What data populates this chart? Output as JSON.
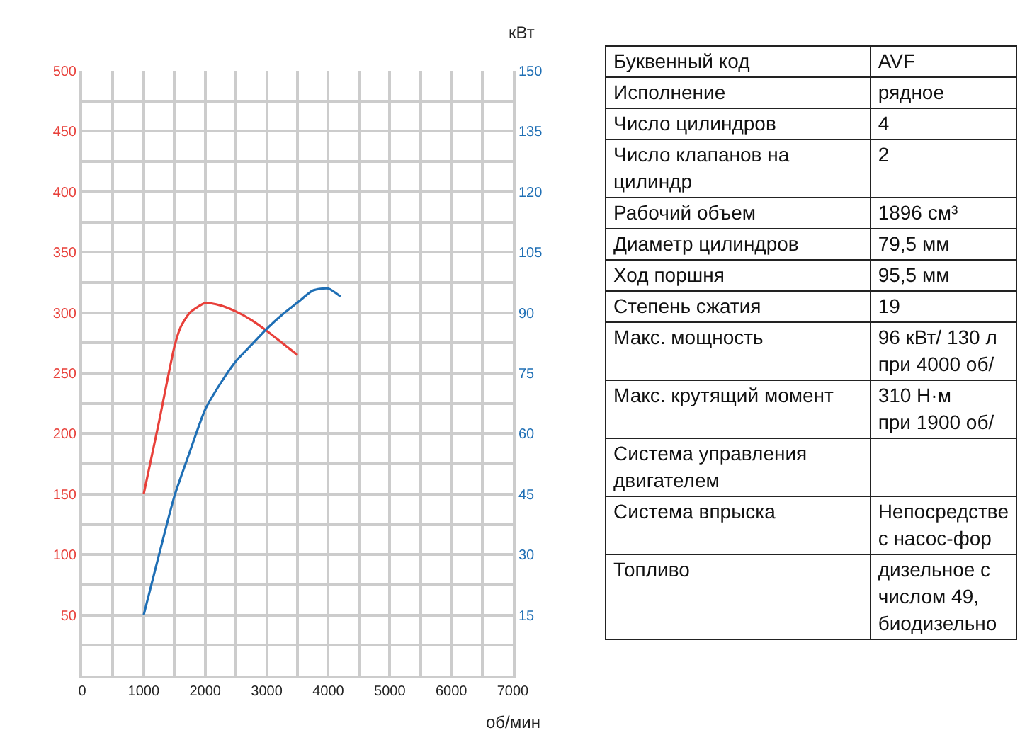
{
  "chart_data": [
    {
      "type": "line",
      "xlabel": "об/мин",
      "y2label": "кВт",
      "xlim": [
        0,
        7000
      ],
      "xticks": [
        {
          "value": 0,
          "label": "0"
        },
        {
          "value": 500,
          "label": null
        },
        1000,
        {
          "value": 1500,
          "label": null
        },
        2000,
        {
          "value": 2500,
          "label": null
        },
        3000,
        {
          "value": 3500,
          "label": null
        },
        4000,
        {
          "value": 4500,
          "label": null
        },
        5000,
        {
          "value": 5500,
          "label": null
        },
        6000,
        {
          "value": 6500,
          "label": null
        },
        7000
      ],
      "ylim": [
        0,
        500
      ],
      "yticks": [
        {
          "value": 25,
          "label": null
        },
        50,
        {
          "value": 75,
          "label": null
        },
        100,
        {
          "value": 125,
          "label": null
        },
        150,
        {
          "value": 175,
          "label": null
        },
        200,
        {
          "value": 225,
          "label": null
        },
        250,
        {
          "value": 275,
          "label": null
        },
        300,
        {
          "value": 325,
          "label": null
        },
        350,
        {
          "value": 375,
          "label": null
        },
        400,
        {
          "value": 425,
          "label": null
        },
        450,
        {
          "value": 475,
          "label": null
        },
        500
      ],
      "y2lim": [
        0,
        150
      ],
      "y2ticks": [
        15,
        30,
        45,
        60,
        75,
        90,
        105,
        120,
        135,
        150
      ],
      "grid": true,
      "line_style": "solid",
      "series": [
        {
          "color": "#e8403a",
          "x": [
            1000,
            1250,
            1500,
            1600,
            1750,
            2000,
            2250,
            2500,
            2750,
            3000,
            3250,
            3500
          ],
          "values": [
            150,
            210,
            272,
            288,
            300,
            308,
            306,
            301,
            294,
            285,
            275,
            265
          ]
        },
        {
          "color": "#1f6fb5",
          "axis": "y2",
          "x": [
            1000,
            1250,
            1500,
            1750,
            2000,
            2250,
            2500,
            2750,
            3000,
            3250,
            3500,
            3750,
            4000,
            4200
          ],
          "values": [
            15,
            30,
            44.5,
            55.5,
            66,
            72.5,
            78,
            82,
            86,
            89.5,
            92.5,
            95.5,
            96,
            94
          ]
        }
      ]
    },
    {
      "type": "other",
      "categories": [
        "Буквенный код",
        "Исполнение",
        "Число цилиндров",
        "Число клапанов на цилиндр",
        "Рабочий объем",
        "Диаметр цилиндров",
        "Ход поршня",
        "Степень сжатия",
        "Макс. мощность",
        "Макс. крутящий момент",
        "Система управления двигателем",
        "Система впрыска",
        "Топливо"
      ],
      "value_labels": [
        "AVF",
        "рядное",
        "4",
        "2",
        "1896 см³",
        "79,5 мм",
        "95,5 мм",
        "19",
        "96 кВт/ 130 л\nпри 4000 об/",
        "310 Н·м\nпри 1900 об/",
        null,
        "Непосредстве\nс насос-фор",
        "дизельное с\nчислом 49,\nбиодизельно"
      ]
    }
  ]
}
